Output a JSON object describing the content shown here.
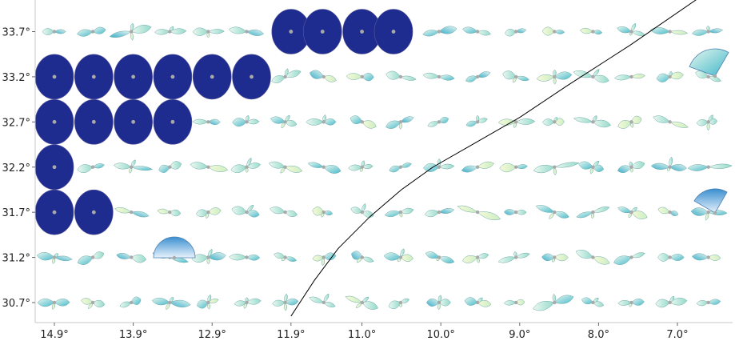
{
  "map": {
    "lat_ticks": [
      "33.7°",
      "33.2°",
      "32.7°",
      "32.2°",
      "31.7°",
      "31.2°",
      "30.7°"
    ],
    "lon_ticks": [
      "14.9°",
      "13.9°",
      "12.9°",
      "11.9°",
      "11.0°",
      "10.0°",
      "9.0°",
      "8.0°",
      "7.0°"
    ],
    "lat_values": [
      33.7,
      33.2,
      32.7,
      32.2,
      31.7,
      31.2,
      30.7
    ],
    "lon_values": [
      14.9,
      13.9,
      12.9,
      11.9,
      11.0,
      10.0,
      9.0,
      8.0,
      7.0
    ],
    "x_axis_direction": "longitude decreasing left to right",
    "colors": {
      "saturated_disc": "#1f2c8f",
      "glyph_light": "#e6f6ee",
      "glyph_mid": "#8fd8d0",
      "glyph_dark": "#3fb7c9",
      "glyph_pale": "#f3f9d2",
      "track_line": "#000000",
      "frame": "#cccccc"
    },
    "glyph_type": "directional rose (bi-lobed)",
    "saturated_cells": [
      {
        "lon": 11.9,
        "lat": 33.7
      },
      {
        "lon": 11.5,
        "lat": 33.7
      },
      {
        "lon": 11.0,
        "lat": 33.7
      },
      {
        "lon": 10.6,
        "lat": 33.7
      },
      {
        "lon": 14.9,
        "lat": 33.2
      },
      {
        "lon": 14.4,
        "lat": 33.2
      },
      {
        "lon": 13.9,
        "lat": 33.2
      },
      {
        "lon": 13.4,
        "lat": 33.2
      },
      {
        "lon": 12.9,
        "lat": 33.2
      },
      {
        "lon": 12.4,
        "lat": 33.2
      },
      {
        "lon": 14.9,
        "lat": 32.7
      },
      {
        "lon": 14.4,
        "lat": 32.7
      },
      {
        "lon": 13.9,
        "lat": 32.7
      },
      {
        "lon": 13.4,
        "lat": 32.7
      },
      {
        "lon": 14.9,
        "lat": 32.2
      },
      {
        "lon": 14.9,
        "lat": 31.7
      },
      {
        "lon": 14.4,
        "lat": 31.7
      }
    ],
    "track_path_lonlat": [
      [
        6.6,
        34.15
      ],
      [
        7.6,
        33.55
      ],
      [
        8.4,
        33.1
      ],
      [
        9.0,
        32.75
      ],
      [
        9.6,
        32.45
      ],
      [
        10.1,
        32.2
      ],
      [
        10.5,
        31.95
      ],
      [
        10.9,
        31.65
      ],
      [
        11.3,
        31.3
      ],
      [
        11.6,
        30.95
      ],
      [
        11.9,
        30.55
      ]
    ]
  }
}
